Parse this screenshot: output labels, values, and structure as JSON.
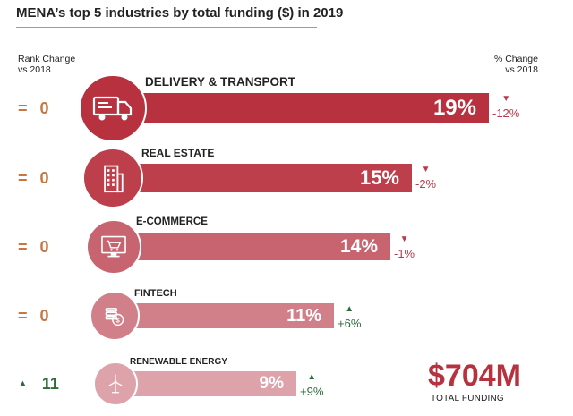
{
  "title": "MENA’s top 5 industries by total funding ($) in 2019",
  "headers": {
    "rank_change": "Rank Change\nvs 2018",
    "pct_change": "% Change\nvs 2018"
  },
  "colors": {
    "bar_1": "#b7313f",
    "bar_2": "#bd3f4c",
    "bar_3": "#c76470",
    "bar_4": "#d17f89",
    "bar_5": "#dea3aa",
    "up": "#2e6b3c",
    "down": "#b93a4a",
    "rank_neutral": "#c7773f"
  },
  "chart_data": {
    "type": "bar",
    "title": "MENA’s top 5 industries by total funding ($) in 2019",
    "categories": [
      "DELIVERY & TRANSPORT",
      "REAL ESTATE",
      "E-COMMERCE",
      "FINTECH",
      "RENEWABLE ENERGY"
    ],
    "series": [
      {
        "values": [
          19,
          15,
          14,
          11,
          9
        ]
      }
    ],
    "value_labels": [
      "19%",
      "15%",
      "14%",
      "11%",
      "9%"
    ],
    "rank_change": [
      {
        "symbol": "=",
        "value": "0",
        "direction": "same"
      },
      {
        "symbol": "=",
        "value": "0",
        "direction": "same"
      },
      {
        "symbol": "=",
        "value": "0",
        "direction": "same"
      },
      {
        "symbol": "=",
        "value": "0",
        "direction": "same"
      },
      {
        "symbol": "▲",
        "value": "11",
        "direction": "up"
      }
    ],
    "pct_change": [
      {
        "symbol": "▼",
        "label": "-12%",
        "direction": "down"
      },
      {
        "symbol": "▼",
        "label": "-2%",
        "direction": "down"
      },
      {
        "symbol": "▼",
        "label": "-1%",
        "direction": "down"
      },
      {
        "symbol": "▲",
        "label": "+6%",
        "direction": "up"
      },
      {
        "symbol": "▲",
        "label": "+9%",
        "direction": "up"
      }
    ],
    "icons": [
      "truck-icon",
      "building-icon",
      "shopping-cart-icon",
      "coins-icon",
      "wind-turbine-icon"
    ]
  },
  "total": {
    "value": "$704M",
    "label": "TOTAL FUNDING"
  }
}
